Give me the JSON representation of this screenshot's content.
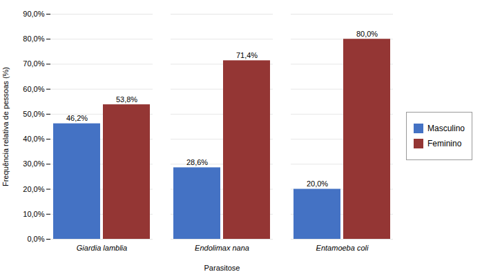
{
  "chart_data": {
    "type": "bar",
    "categories": [
      "Giardia lamblia",
      "Endolimax nana",
      "Entamoeba coli"
    ],
    "series": [
      {
        "name": "Masculino",
        "color": "#4472C4",
        "values": [
          46.2,
          28.6,
          20.0
        ],
        "value_labels": [
          "46,2%",
          "28,6%",
          "20,0%"
        ]
      },
      {
        "name": "Feminino",
        "color": "#943634",
        "values": [
          53.8,
          71.4,
          80.0
        ],
        "value_labels": [
          "53,8%",
          "71,4%",
          "80,0%"
        ]
      }
    ],
    "xlabel": "Parasitose",
    "ylabel": "Frequência relativa de pessoas (%)",
    "ylim": [
      0,
      90
    ],
    "yticks": [
      {
        "value": 0,
        "label": "0,0%"
      },
      {
        "value": 10,
        "label": "10,0%"
      },
      {
        "value": 20,
        "label": "20,0%"
      },
      {
        "value": 30,
        "label": "30,0%"
      },
      {
        "value": 40,
        "label": "40,0%"
      },
      {
        "value": 50,
        "label": "50,0%"
      },
      {
        "value": 60,
        "label": "60,0%"
      },
      {
        "value": 70,
        "label": "70,0%"
      },
      {
        "value": 80,
        "label": "80,0%"
      },
      {
        "value": 90,
        "label": "90,0%"
      }
    ],
    "grid": true,
    "legend": "right",
    "data_labels": true
  }
}
